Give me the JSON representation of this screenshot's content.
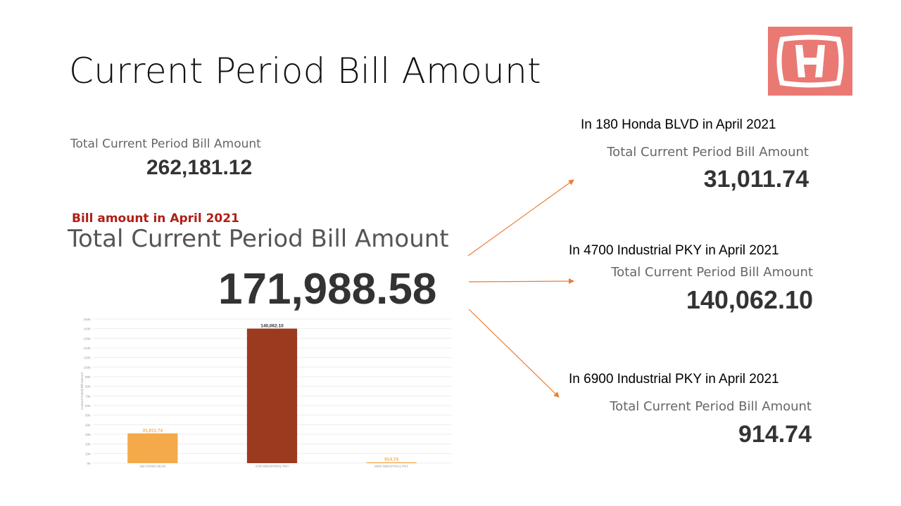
{
  "slide": {
    "title": "Current Period Bill Amount"
  },
  "total": {
    "label": "Total Current Period Bill Amount",
    "value": "262,181.12"
  },
  "april": {
    "heading": "Bill amount in April 2021",
    "label": "Total Current Period Bill Amount",
    "value": "171,988.58"
  },
  "breakdown": [
    {
      "heading": "In 180 Honda BLVD in April 2021",
      "label": "Total Current Period Bill Amount",
      "value": "31,011.74"
    },
    {
      "heading": "In 4700 Industrial PKY in April 2021",
      "label": "Total Current Period Bill Amount",
      "value": "140,062.10"
    },
    {
      "heading": "In 6900 Industrial PKY in April 2021",
      "label": "Total Current Period Bill Amount",
      "value": "914.74"
    }
  ],
  "colors": {
    "arrow": "#ed7d31",
    "logo_bg": "#ea7973",
    "title_red": "#b01e16"
  },
  "chart_data": {
    "type": "bar",
    "categories": [
      "180 HONDA BLVD",
      "4700 INDUSTRIAL PKY",
      "6900 INDUSTRIAL PKY"
    ],
    "values": [
      31011.74,
      140062.1,
      914.74
    ],
    "data_labels": [
      "31,011.74",
      "140,062.10",
      "914.74"
    ],
    "colors": [
      "#f4a94a",
      "#9c3a20",
      "#f4a94a"
    ],
    "ylabel": "Current Period Bill Amount",
    "ylim": [
      0,
      150000
    ],
    "yticks": [
      0,
      10000,
      20000,
      30000,
      40000,
      50000,
      60000,
      70000,
      80000,
      90000,
      100000,
      110000,
      120000,
      130000,
      140000,
      150000
    ],
    "ytick_labels": [
      "0K",
      "10K",
      "20K",
      "30K",
      "40K",
      "50K",
      "60K",
      "70K",
      "80K",
      "90K",
      "100K",
      "110K",
      "120K",
      "130K",
      "140K",
      "150K"
    ],
    "grid": true
  }
}
